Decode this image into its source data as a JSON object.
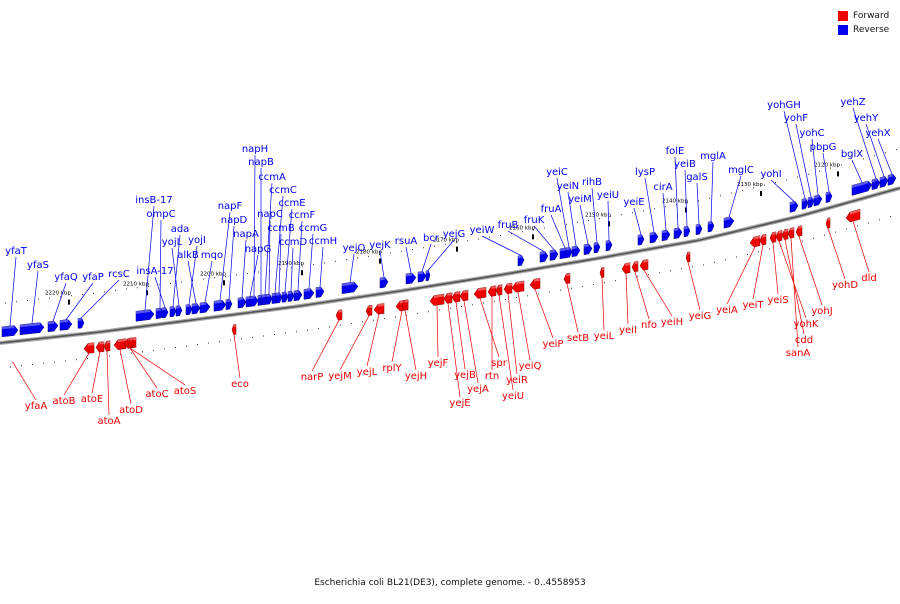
{
  "caption": "Escherichia coli BL21(DE3), complete genome. - 0..4558953",
  "legend": [
    {
      "label": "Forward",
      "color": "#ee0000"
    },
    {
      "label": "Reverse",
      "color": "#0000ee"
    }
  ],
  "colors": {
    "forward": "#ee0000",
    "reverse": "#0000ee",
    "backbone": "#777777"
  },
  "kbp_ticks": [
    "2220 kbp",
    "2210 kbp",
    "2200 kbp",
    "2190 kbp",
    "2180 kbp",
    "2170 kbp",
    "2160 kbp",
    "2150 kbp",
    "2140 kbp",
    "2130 kbp",
    "2120 kbp"
  ],
  "reverse_genes": [
    "yfaT",
    "yfaS",
    "yfaQ",
    "yfaP",
    "rcsC",
    "insB-17",
    "ompC",
    "insA-17",
    "ada",
    "yojL",
    "yojI",
    "alkB",
    "mqo",
    "napF",
    "napD",
    "napA",
    "napG",
    "napH",
    "napB",
    "ccmA",
    "napC",
    "ccmC",
    "ccmB",
    "ccmE",
    "ccmD",
    "ccmF",
    "ccmG",
    "ccmH",
    "yejO",
    "yejK",
    "rsuA",
    "bcr",
    "yejG",
    "yeiW",
    "fruB",
    "fruK",
    "fruA",
    "yeiC",
    "yeiN",
    "yeiM",
    "rihB",
    "yeiU",
    "yeiE",
    "lysP",
    "cirA",
    "folE",
    "yeiB",
    "galS",
    "mglA",
    "mglC",
    "yohI",
    "yohGH",
    "yohF",
    "yohC",
    "pbpG",
    "bglX",
    "yehZ",
    "yehY",
    "yehX"
  ],
  "forward_genes": [
    "yfaA",
    "atoB",
    "atoE",
    "atoA",
    "atoD",
    "atoC",
    "atoS",
    "eco",
    "narP",
    "yejM",
    "yejL",
    "rplY",
    "yejH",
    "yejF",
    "yejE",
    "yejB",
    "yejA",
    "spr",
    "rtn",
    "yeiU",
    "yeiR",
    "yeiQ",
    "yeiP",
    "setB",
    "yeiL",
    "yeiI",
    "nfo",
    "yeiH",
    "yeiG",
    "yeiA",
    "yeiT",
    "yeiS",
    "yohK",
    "cdd",
    "sanA",
    "yohJ",
    "yohD",
    "dld"
  ]
}
